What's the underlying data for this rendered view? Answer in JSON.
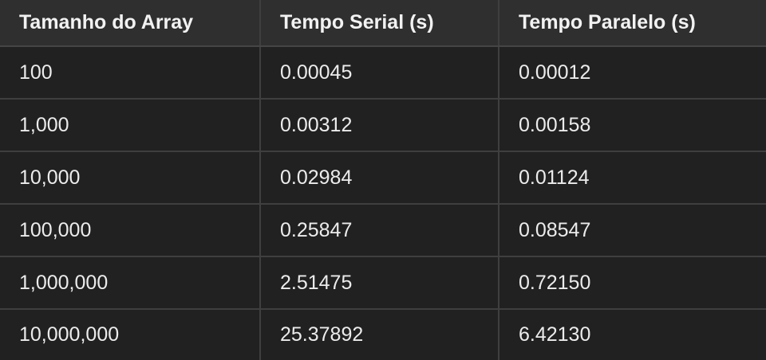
{
  "table": {
    "headers": [
      "Tamanho do Array",
      "Tempo Serial (s)",
      "Tempo Paralelo (s)"
    ],
    "rows": [
      [
        "100",
        "0.00045",
        "0.00012"
      ],
      [
        "1,000",
        "0.00312",
        "0.00158"
      ],
      [
        "10,000",
        "0.02984",
        "0.01124"
      ],
      [
        "100,000",
        "0.25847",
        "0.08547"
      ],
      [
        "1,000,000",
        "2.51475",
        "0.72150"
      ],
      [
        "10,000,000",
        "25.37892",
        "6.42130"
      ]
    ]
  },
  "colors": {
    "background": "#212121",
    "header_background": "#2f2f2f",
    "grid_line": "#3f3f3f",
    "text": "#ececec"
  }
}
